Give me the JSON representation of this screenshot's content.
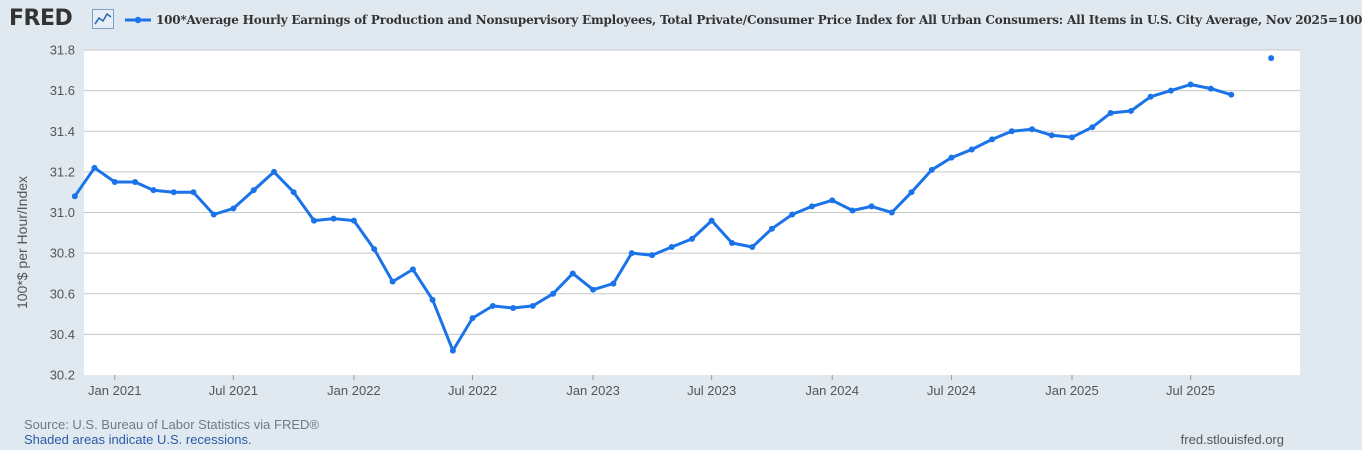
{
  "header": {
    "logo_text": "FRED",
    "logo_icon": "line-chart-icon",
    "legend_label": "100*Average Hourly Earnings of Production and Nonsupervisory Employees, Total Private/Consumer Price Index for All Urban Consumers: All Items in U.S. City Average, Nov 2025=100"
  },
  "footer": {
    "source": "Source: U.S. Bureau of Labor Statistics via FRED®",
    "recessions": "Shaded areas indicate U.S. recessions.",
    "url": "fred.stlouisfed.org"
  },
  "colors": {
    "series": "#1a73e8",
    "background": "#e1e9f0",
    "plot_background": "#ffffff",
    "grid": "#c8c8c8"
  },
  "chart_data": {
    "type": "line",
    "title": "",
    "xlabel": "",
    "ylabel": "100*$ per Hour/Index",
    "ylim": [
      30.2,
      31.8
    ],
    "yticks": [
      30.2,
      30.4,
      30.6,
      30.8,
      31.0,
      31.2,
      31.4,
      31.6,
      31.8
    ],
    "ytick_labels": [
      "30.2",
      "30.4",
      "30.6",
      "30.8",
      "31.0",
      "31.2",
      "31.4",
      "31.6",
      "31.8"
    ],
    "xlim": [
      "2020-11-15",
      "2025-12-15"
    ],
    "xticks": [
      "2021-01-01",
      "2021-07-01",
      "2022-01-01",
      "2022-07-01",
      "2023-01-01",
      "2023-07-01",
      "2024-01-01",
      "2024-07-01",
      "2025-01-01",
      "2025-07-01"
    ],
    "xtick_labels": [
      "Jan 2021",
      "Jul 2021",
      "Jan 2022",
      "Jul 2022",
      "Jan 2023",
      "Jul 2023",
      "Jan 2024",
      "Jul 2024",
      "Jan 2025",
      "Jul 2025"
    ],
    "grid": "horizontal",
    "legend": "top",
    "series": [
      {
        "name": "100*Average Hourly Earnings of Production and Nonsupervisory Employees, Total Private/Consumer Price Index for All Urban Consumers: All Items in U.S. City Average, Nov 2025=100",
        "x": [
          "2020-11-01",
          "2020-12-01",
          "2021-01-01",
          "2021-02-01",
          "2021-03-01",
          "2021-04-01",
          "2021-05-01",
          "2021-06-01",
          "2021-07-01",
          "2021-08-01",
          "2021-09-01",
          "2021-10-01",
          "2021-11-01",
          "2021-12-01",
          "2022-01-01",
          "2022-02-01",
          "2022-03-01",
          "2022-04-01",
          "2022-05-01",
          "2022-06-01",
          "2022-07-01",
          "2022-08-01",
          "2022-09-01",
          "2022-10-01",
          "2022-11-01",
          "2022-12-01",
          "2023-01-01",
          "2023-02-01",
          "2023-03-01",
          "2023-04-01",
          "2023-05-01",
          "2023-06-01",
          "2023-07-01",
          "2023-08-01",
          "2023-09-01",
          "2023-10-01",
          "2023-11-01",
          "2023-12-01",
          "2024-01-01",
          "2024-02-01",
          "2024-03-01",
          "2024-04-01",
          "2024-05-01",
          "2024-06-01",
          "2024-07-01",
          "2024-08-01",
          "2024-09-01",
          "2024-10-01",
          "2024-11-01",
          "2024-12-01",
          "2025-01-01",
          "2025-02-01",
          "2025-03-01",
          "2025-04-01",
          "2025-05-01",
          "2025-06-01",
          "2025-07-01",
          "2025-08-01",
          "2025-09-01"
        ],
        "y": [
          31.08,
          31.22,
          31.15,
          31.15,
          31.11,
          31.1,
          31.1,
          30.99,
          31.02,
          31.11,
          31.2,
          31.1,
          30.96,
          30.97,
          30.96,
          30.82,
          30.66,
          30.72,
          30.57,
          30.32,
          30.48,
          30.54,
          30.53,
          30.54,
          30.6,
          30.7,
          30.62,
          30.65,
          30.8,
          30.79,
          30.83,
          30.87,
          30.96,
          30.85,
          30.83,
          30.92,
          30.99,
          31.03,
          31.06,
          31.01,
          31.03,
          31.0,
          31.1,
          31.21,
          31.27,
          31.31,
          31.36,
          31.4,
          31.41,
          31.38,
          31.37,
          31.42,
          31.49,
          31.5,
          31.57,
          31.6,
          31.63,
          31.61,
          31.58
        ]
      },
      {
        "name": "",
        "x": [
          "2025-11-01"
        ],
        "y": [
          31.76
        ]
      }
    ]
  }
}
